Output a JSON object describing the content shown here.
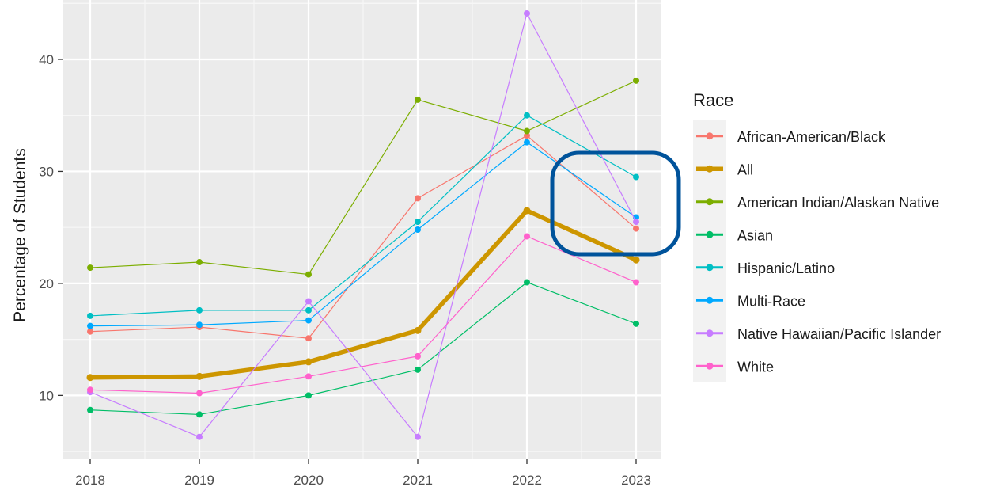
{
  "chart_data": {
    "type": "line",
    "title": "",
    "xlabel": "",
    "ylabel": "Percentage of Students",
    "x": [
      "2018",
      "2019",
      "2020",
      "2021",
      "2022",
      "2023"
    ],
    "y_ticks": [
      "10",
      "20",
      "30",
      "40"
    ],
    "ylim": [
      4.3,
      45.3
    ],
    "grid": true,
    "legend_title": "Race",
    "legend_position": "right",
    "series": [
      {
        "name": "African-American/Black",
        "color": "#F8766D",
        "values": [
          15.7,
          16.1,
          15.1,
          27.6,
          33.2,
          24.9
        ]
      },
      {
        "name": "All",
        "color": "#CD9600",
        "thick": true,
        "values": [
          11.6,
          11.7,
          13.0,
          15.8,
          26.5,
          22.1
        ]
      },
      {
        "name": "American Indian/Alaskan Native",
        "color": "#7CAE00",
        "values": [
          21.4,
          21.9,
          20.8,
          36.4,
          33.6,
          38.1
        ]
      },
      {
        "name": "Asian",
        "color": "#00BE67",
        "values": [
          8.7,
          8.3,
          10.0,
          12.3,
          20.1,
          16.4
        ]
      },
      {
        "name": "Hispanic/Latino",
        "color": "#00BFC4",
        "values": [
          17.1,
          17.6,
          17.6,
          25.5,
          35.0,
          29.5
        ]
      },
      {
        "name": "Multi-Race",
        "color": "#00A9FF",
        "values": [
          16.2,
          16.3,
          16.7,
          24.8,
          32.6,
          25.9
        ]
      },
      {
        "name": "Native Hawaiian/Pacific Islander",
        "color": "#C77CFF",
        "values": [
          10.3,
          6.3,
          18.4,
          6.3,
          44.1,
          25.5
        ]
      },
      {
        "name": "White",
        "color": "#FF61CC",
        "values": [
          10.5,
          10.2,
          11.7,
          13.5,
          24.2,
          20.1
        ]
      }
    ],
    "annotation": {
      "shape": "rounded-rectangle",
      "color": "#00539B",
      "highlights": "2023"
    }
  }
}
